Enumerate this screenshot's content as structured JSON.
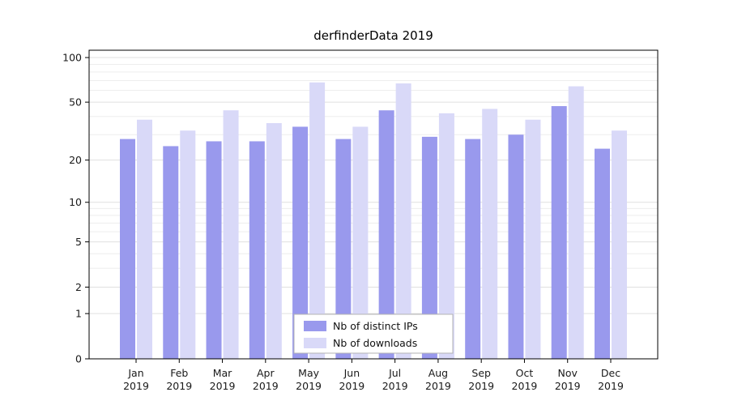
{
  "chart_data": {
    "type": "bar",
    "title": "derfinderData 2019",
    "categories": [
      "Jan",
      "Feb",
      "Mar",
      "Apr",
      "May",
      "Jun",
      "Jul",
      "Aug",
      "Sep",
      "Oct",
      "Nov",
      "Dec"
    ],
    "x_sublabel": "2019",
    "series": [
      {
        "name": "Nb of distinct IPs",
        "color": "#9999ed",
        "values": [
          28,
          25,
          27,
          27,
          34,
          28,
          44,
          29,
          28,
          30,
          47,
          24
        ]
      },
      {
        "name": "Nb of downloads",
        "color": "#d9d9f8",
        "values": [
          38,
          32,
          44,
          36,
          68,
          34,
          67,
          42,
          45,
          38,
          64,
          32
        ]
      }
    ],
    "yscale": "log1p",
    "ylim": [
      0,
      112
    ],
    "yticks": [
      0,
      1,
      2,
      5,
      10,
      20,
      50,
      100
    ],
    "minor_gridlines": [
      3,
      4,
      6,
      7,
      8,
      9,
      30,
      40,
      60,
      70,
      80,
      90
    ],
    "grid": true,
    "legend_position": "bottom-center",
    "colors": {
      "axis": "#000000",
      "tick_label": "#1a1a1a",
      "grid_major": "#e0e0e0",
      "grid_minor": "#ededed",
      "legend_border": "#b3b3b3",
      "legend_bg": "#ffffff",
      "background": "#ffffff"
    }
  }
}
